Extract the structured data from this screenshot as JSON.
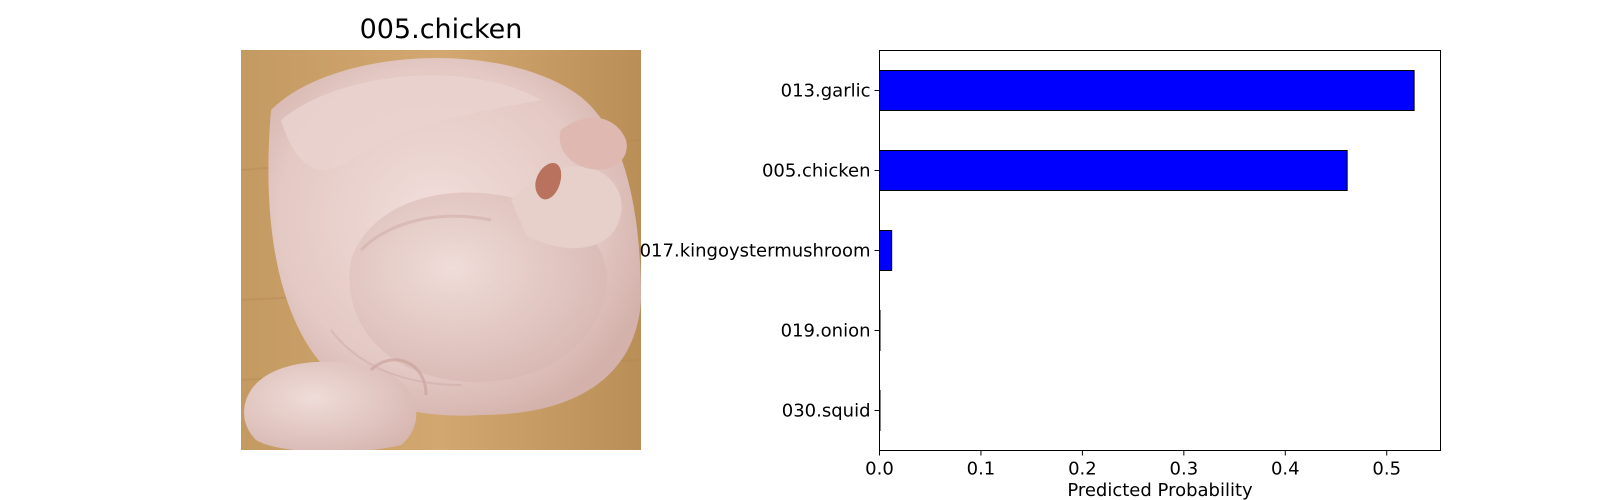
{
  "image_panel": {
    "title": "005.chicken",
    "image_subject": "raw whole chicken on wooden board"
  },
  "chart_data": {
    "type": "bar",
    "orientation": "horizontal",
    "categories": [
      "013.garlic",
      "005.chicken",
      "017.kingoystermushroom",
      "019.onion",
      "030.squid"
    ],
    "values": [
      0.527,
      0.461,
      0.012,
      0.0005,
      0.0003
    ],
    "xlabel": "Predicted Probability",
    "ylabel": "",
    "title": "",
    "xlim": [
      0,
      0.553
    ],
    "xticks": [
      "0.0",
      "0.1",
      "0.2",
      "0.3",
      "0.4",
      "0.5"
    ],
    "bar_color": "#0000ff",
    "bar_edge_color": "#000000",
    "grid": false
  }
}
